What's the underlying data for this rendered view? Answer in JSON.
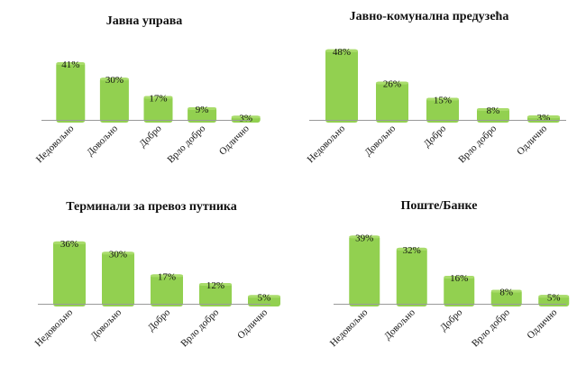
{
  "colors": {
    "bar": "#92d050",
    "bar_top": "#a9dc6b",
    "axis": "#9a9a9a"
  },
  "chart_data": [
    {
      "type": "bar",
      "title": "Јавна управа",
      "categories": [
        "Недовољно",
        "Довољно",
        "Добро",
        "Врло добро",
        "Одлично"
      ],
      "values": [
        41,
        30,
        17,
        9,
        3
      ],
      "value_labels": [
        "41%",
        "30%",
        "17%",
        "9%",
        "3%"
      ],
      "xlabel": "",
      "ylabel": "",
      "ylim": [
        0,
        50
      ],
      "grid": false
    },
    {
      "type": "bar",
      "title": "Јавно-комунална предузећа",
      "categories": [
        "Недовољно",
        "Довољно",
        "Добро",
        "Врло добро",
        "Одлично"
      ],
      "values": [
        48,
        26,
        15,
        8,
        3
      ],
      "value_labels": [
        "48%",
        "26%",
        "15%",
        "8%",
        "3%"
      ],
      "xlabel": "",
      "ylabel": "",
      "ylim": [
        0,
        50
      ],
      "grid": false
    },
    {
      "type": "bar",
      "title": "Терминали за превоз путника",
      "categories": [
        "Недовољно",
        "Довољно",
        "Добро",
        "Врло добро",
        "Одлично"
      ],
      "values": [
        36,
        30,
        17,
        12,
        5
      ],
      "value_labels": [
        "36%",
        "30%",
        "17%",
        "12%",
        "5%"
      ],
      "xlabel": "",
      "ylabel": "",
      "ylim": [
        0,
        50
      ],
      "grid": false
    },
    {
      "type": "bar",
      "title": "Поште/Банке",
      "categories": [
        "Недовољно",
        "Довољно",
        "Добро",
        "Врло добро",
        "Одлично"
      ],
      "values": [
        39,
        32,
        16,
        8,
        5
      ],
      "value_labels": [
        "39%",
        "32%",
        "16%",
        "8%",
        "5%"
      ],
      "xlabel": "",
      "ylabel": "",
      "ylim": [
        0,
        50
      ],
      "grid": false
    }
  ]
}
